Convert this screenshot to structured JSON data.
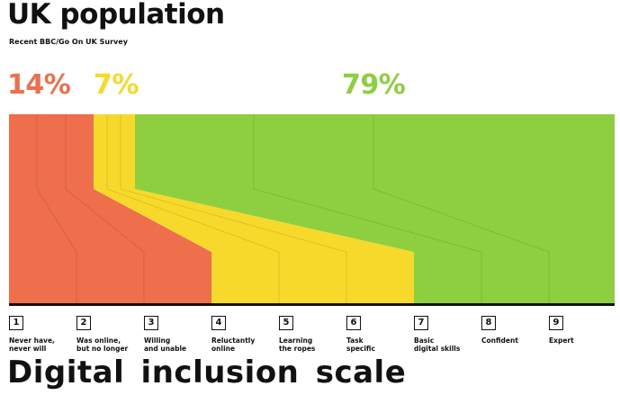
{
  "header": {
    "title": "UK population",
    "subtitle": "Recent BBC/Go On UK Survey"
  },
  "groups": [
    {
      "label": "14%",
      "color": "#EF6E4C"
    },
    {
      "label": "7%",
      "color": "#F7D92C"
    },
    {
      "label": "79%",
      "color": "#8DCF3F"
    }
  ],
  "stages": [
    {
      "num": "1",
      "line1": "Never have,",
      "line2": "never will"
    },
    {
      "num": "2",
      "line1": "Was online,",
      "line2": "but no longer"
    },
    {
      "num": "3",
      "line1": "Willing",
      "line2": "and unable"
    },
    {
      "num": "4",
      "line1": "Reluctantly",
      "line2": "online"
    },
    {
      "num": "5",
      "line1": "Learning",
      "line2": "the ropes"
    },
    {
      "num": "6",
      "line1": "Task",
      "line2": "specific"
    },
    {
      "num": "7",
      "line1": "Basic",
      "line2": "digital skills"
    },
    {
      "num": "8",
      "line1": "Confident",
      "line2": ""
    },
    {
      "num": "9",
      "line1": "Expert",
      "line2": ""
    }
  ],
  "footer": {
    "title": "Digital inclusion scale"
  },
  "chart_data": {
    "type": "area",
    "title": "UK population",
    "subtitle": "Recent BBC/Go On UK Survey",
    "series": [
      {
        "name": "14%",
        "value": 14,
        "color": "#EF6E4C",
        "stages": [
          "1",
          "2",
          "3"
        ]
      },
      {
        "name": "7%",
        "value": 7,
        "color": "#F7D92C",
        "stages": [
          "4",
          "5",
          "6"
        ]
      },
      {
        "name": "79%",
        "value": 79,
        "color": "#8DCF3F",
        "stages": [
          "7",
          "8",
          "9"
        ]
      }
    ],
    "categories": [
      "Never have, never will",
      "Was online, but no longer",
      "Willing and unable",
      "Reluctantly online",
      "Learning the ropes",
      "Task specific",
      "Basic digital skills",
      "Confident",
      "Expert"
    ],
    "xlabel": "Digital inclusion scale"
  }
}
